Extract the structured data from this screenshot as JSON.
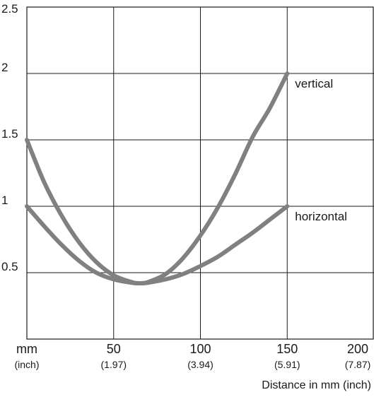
{
  "chart_data": {
    "type": "line",
    "xlabel": "Distance in mm (inch)",
    "ylabel": "",
    "xlim": [
      0,
      200
    ],
    "ylim": [
      0,
      2.5
    ],
    "grid": true,
    "x_unit_label": "mm",
    "x_unit_sublabel": "(inch)",
    "x_ticks": [
      {
        "value": 50,
        "label": "50",
        "sublabel": "(1.97)"
      },
      {
        "value": 100,
        "label": "100",
        "sublabel": "(3.94)"
      },
      {
        "value": 150,
        "label": "150",
        "sublabel": "(5.91)"
      },
      {
        "value": 200,
        "label": "200",
        "sublabel": "(7.87)"
      }
    ],
    "y_ticks": [
      {
        "value": 0.5,
        "label": "0.5"
      },
      {
        "value": 1,
        "label": "1"
      },
      {
        "value": 1.5,
        "label": "1.5"
      },
      {
        "value": 2,
        "label": "2"
      },
      {
        "value": 2.5,
        "label": "2.5"
      }
    ],
    "series": [
      {
        "name": "vertical",
        "color": "#808080",
        "points": [
          {
            "x": 0,
            "y": 1.5
          },
          {
            "x": 10,
            "y": 1.18
          },
          {
            "x": 20,
            "y": 0.93
          },
          {
            "x": 30,
            "y": 0.73
          },
          {
            "x": 40,
            "y": 0.58
          },
          {
            "x": 50,
            "y": 0.48
          },
          {
            "x": 60,
            "y": 0.43
          },
          {
            "x": 65,
            "y": 0.42
          },
          {
            "x": 70,
            "y": 0.43
          },
          {
            "x": 80,
            "y": 0.49
          },
          {
            "x": 90,
            "y": 0.61
          },
          {
            "x": 100,
            "y": 0.78
          },
          {
            "x": 110,
            "y": 0.99
          },
          {
            "x": 120,
            "y": 1.24
          },
          {
            "x": 130,
            "y": 1.52
          },
          {
            "x": 140,
            "y": 1.74
          },
          {
            "x": 150,
            "y": 2.0
          }
        ]
      },
      {
        "name": "horizontal",
        "color": "#808080",
        "points": [
          {
            "x": 0,
            "y": 1.0
          },
          {
            "x": 10,
            "y": 0.85
          },
          {
            "x": 20,
            "y": 0.71
          },
          {
            "x": 30,
            "y": 0.59
          },
          {
            "x": 40,
            "y": 0.5
          },
          {
            "x": 50,
            "y": 0.45
          },
          {
            "x": 60,
            "y": 0.425
          },
          {
            "x": 65,
            "y": 0.42
          },
          {
            "x": 70,
            "y": 0.425
          },
          {
            "x": 80,
            "y": 0.45
          },
          {
            "x": 90,
            "y": 0.49
          },
          {
            "x": 100,
            "y": 0.55
          },
          {
            "x": 110,
            "y": 0.62
          },
          {
            "x": 120,
            "y": 0.71
          },
          {
            "x": 130,
            "y": 0.8
          },
          {
            "x": 140,
            "y": 0.9
          },
          {
            "x": 150,
            "y": 1.0
          }
        ]
      }
    ]
  }
}
